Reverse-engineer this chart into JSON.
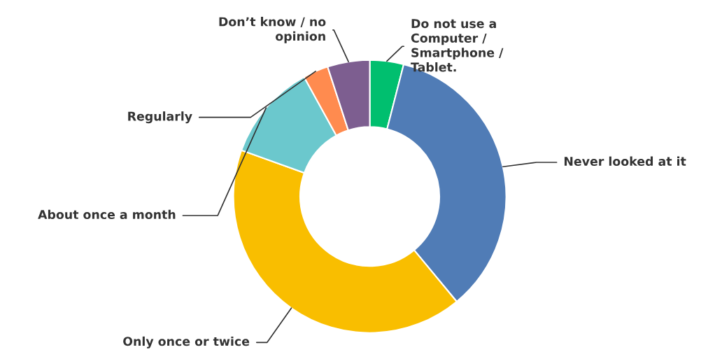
{
  "chart_data": {
    "type": "donut",
    "categories": [
      "Do not use a\nComputer /\nSmartphone /\nTablet.",
      "Never looked at it",
      "Only once or twice",
      "About once a month",
      "Regularly",
      "Don’t know / no\nopinion"
    ],
    "values": [
      4,
      35,
      41.5,
      11.5,
      3,
      5
    ],
    "colors": [
      "#00bf6f",
      "#507cb6",
      "#f9be00",
      "#6bc8cd",
      "#ff8b4f",
      "#7d5e90"
    ],
    "legend": false
  }
}
